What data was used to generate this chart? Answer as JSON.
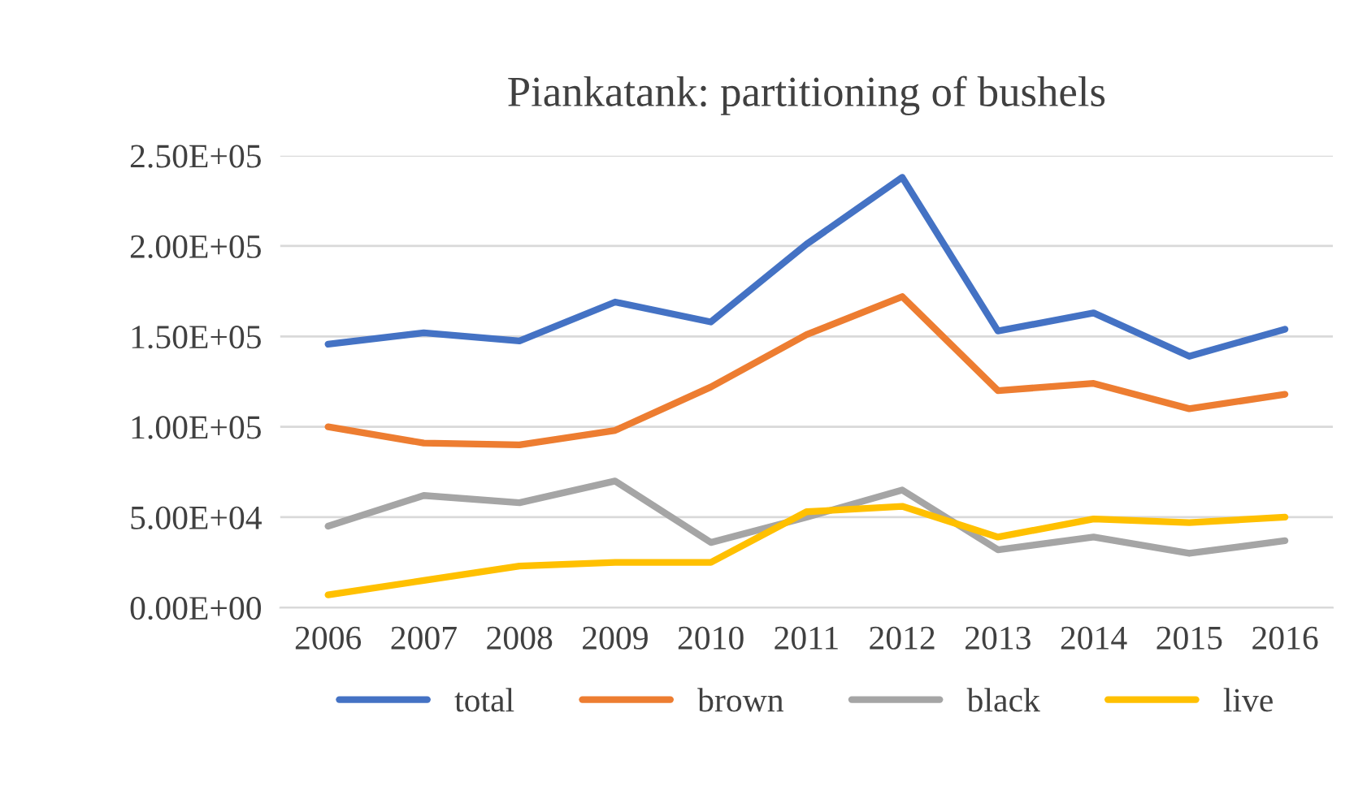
{
  "chart_data": {
    "type": "line",
    "title": "Piankatank: partitioning of bushels",
    "categories": [
      "2006",
      "2007",
      "2008",
      "2009",
      "2010",
      "2011",
      "2012",
      "2013",
      "2014",
      "2015",
      "2016"
    ],
    "series": [
      {
        "name": "total",
        "color": "#4472c4",
        "values": [
          145700,
          152000,
          147500,
          169000,
          158000,
          201000,
          238000,
          153000,
          163000,
          139000,
          154000
        ]
      },
      {
        "name": "brown",
        "color": "#ed7d31",
        "values": [
          100000,
          91000,
          90000,
          98000,
          122000,
          151000,
          172000,
          120000,
          124000,
          110000,
          118000
        ]
      },
      {
        "name": "black",
        "color": "#a5a5a5",
        "values": [
          45000,
          62000,
          58000,
          70000,
          36000,
          50000,
          65000,
          32000,
          39000,
          30000,
          37000
        ]
      },
      {
        "name": "live",
        "color": "#ffc000",
        "values": [
          7000,
          15000,
          23000,
          25000,
          25000,
          53000,
          56000,
          39000,
          49000,
          47000,
          50000
        ]
      }
    ],
    "ylim": [
      0,
      250000
    ],
    "yticks": [
      {
        "value": 0,
        "label": "0.00E+00"
      },
      {
        "value": 50000,
        "label": "5.00E+04"
      },
      {
        "value": 100000,
        "label": "1.00E+05"
      },
      {
        "value": 150000,
        "label": "1.50E+05"
      },
      {
        "value": 200000,
        "label": "2.00E+05"
      },
      {
        "value": 250000,
        "label": "2.50E+05"
      }
    ],
    "grid": "y",
    "legend": "bottom",
    "marker": "none",
    "line_style": "solid"
  }
}
